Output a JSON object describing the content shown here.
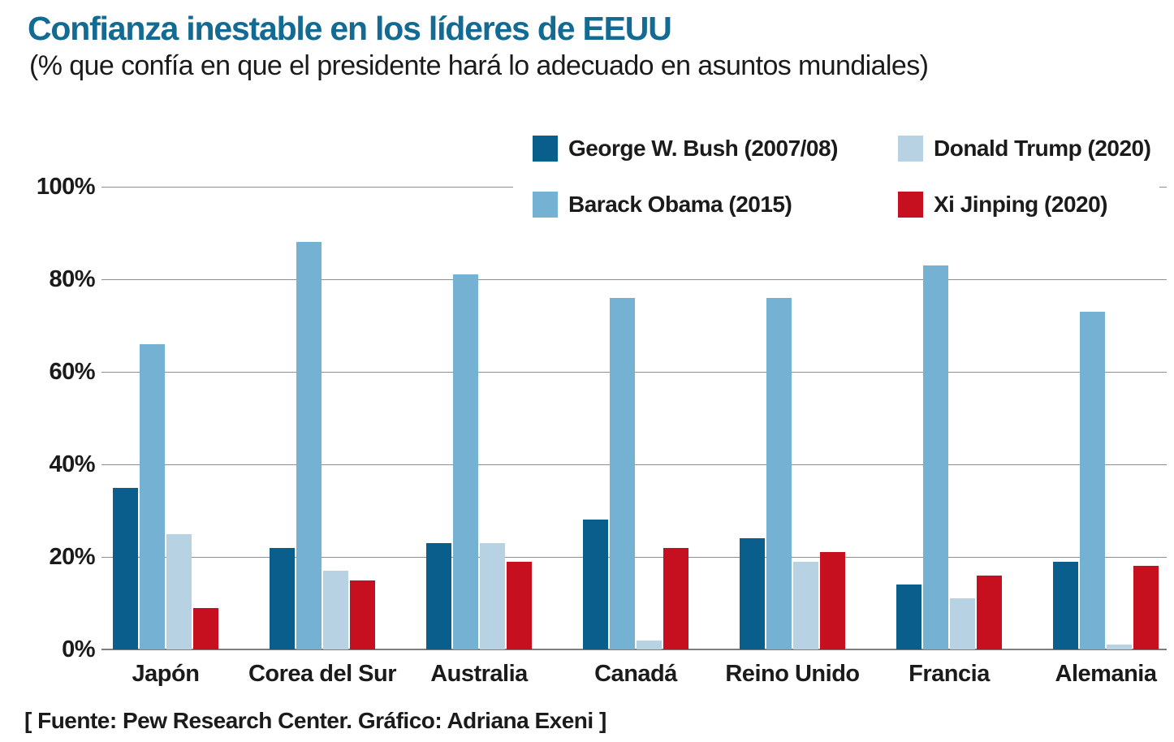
{
  "header": {
    "title": "Confianza inestable en los líderes de EEUU",
    "subtitle": "(% que confía en que el presidente hará lo adecuado en asuntos mundiales)"
  },
  "footer": {
    "source": "[ Fuente: Pew Research Center. Gráfico: Adriana Exeni ]"
  },
  "colors": {
    "title": "#136a93",
    "text": "#1b1b1b",
    "gridline": "#8f8f8f",
    "baseline": "#7d7d7d",
    "bush": "#095e8c",
    "obama": "#74b1d3",
    "trump": "#b7d3e3",
    "xi": "#c6101f"
  },
  "legend": {
    "items": [
      {
        "label": "George W. Bush (2007/08)",
        "color_key": "bush"
      },
      {
        "label": "Donald Trump (2020)",
        "color_key": "trump"
      },
      {
        "label": "Barack Obama (2015)",
        "color_key": "obama"
      },
      {
        "label": "Xi Jinping (2020)",
        "color_key": "xi"
      }
    ]
  },
  "chart_data": {
    "type": "bar",
    "title": "Confianza inestable en los líderes de EEUU",
    "subtitle": "(% que confía en que el presidente hará lo adecuado en asuntos mundiales)",
    "categories": [
      "Japón",
      "Corea del Sur",
      "Australia",
      "Canadá",
      "Reino Unido",
      "Francia",
      "Alemania"
    ],
    "series": [
      {
        "name": "George W. Bush (2007/08)",
        "color_key": "bush",
        "values": [
          35,
          22,
          23,
          28,
          24,
          14,
          19
        ]
      },
      {
        "name": "Barack Obama (2015)",
        "color_key": "obama",
        "values": [
          66,
          88,
          81,
          76,
          76,
          83,
          73
        ]
      },
      {
        "name": "Donald Trump (2020)",
        "color_key": "trump",
        "values": [
          25,
          17,
          23,
          2,
          19,
          11,
          1
        ]
      },
      {
        "name": "Xi Jinping (2020)",
        "color_key": "xi",
        "values": [
          9,
          15,
          19,
          22,
          21,
          16,
          18
        ]
      }
    ],
    "ylabel": "",
    "xlabel": "",
    "ylim": [
      0,
      100
    ],
    "y_ticks": [
      {
        "value": 100,
        "label": "100%"
      },
      {
        "value": 80,
        "label": "80%"
      },
      {
        "value": 60,
        "label": "60%"
      },
      {
        "value": 40,
        "label": "40%"
      },
      {
        "value": 20,
        "label": "20%"
      },
      {
        "value": 0,
        "label": "0%"
      }
    ],
    "grid": true,
    "legend_position": "top-right-overlay"
  }
}
